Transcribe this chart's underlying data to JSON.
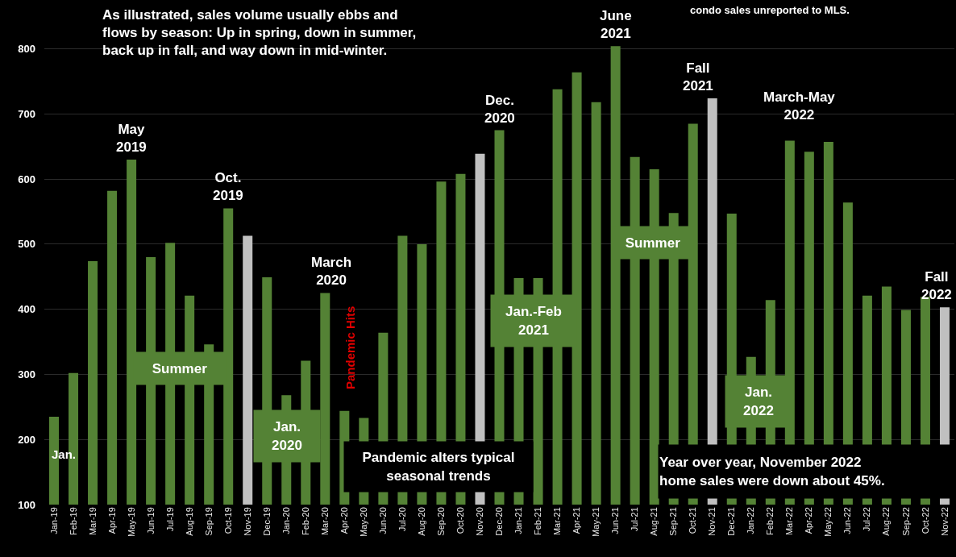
{
  "chart_data": {
    "type": "bar",
    "categories": [
      "Jan-19",
      "Feb-19",
      "Mar-19",
      "Apr-19",
      "May-19",
      "Jun-19",
      "Jul-19",
      "Aug-19",
      "Sep-19",
      "Oct-19",
      "Nov-19",
      "Dec-19",
      "Jan-20",
      "Feb-20",
      "Mar-20",
      "Apr-20",
      "May-20",
      "Jun-20",
      "Jul-20",
      "Aug-20",
      "Sep-20",
      "Oct-20",
      "Nov-20",
      "Dec-20",
      "Jan-21",
      "Feb-21",
      "Mar-21",
      "Apr-21",
      "May-21",
      "Jun-21",
      "Jul-21",
      "Aug-21",
      "Sep-21",
      "Oct-21",
      "Nov-21",
      "Dec-21",
      "Jan-22",
      "Feb-22",
      "Mar-22",
      "Apr-22",
      "May-22",
      "Jun-22",
      "Jul-22",
      "Aug-22",
      "Sep-22",
      "Oct-22",
      "Nov-22"
    ],
    "values": [
      235,
      302,
      474,
      582,
      630,
      480,
      502,
      421,
      346,
      555,
      513,
      449,
      268,
      321,
      425,
      244,
      233,
      364,
      513,
      500,
      596,
      608,
      639,
      675,
      448,
      448,
      738,
      764,
      718,
      804,
      634,
      615,
      548,
      685,
      724,
      547,
      327,
      414,
      659,
      642,
      657,
      564,
      421,
      435,
      399,
      419,
      403
    ],
    "colors": [
      "#548235",
      "#548235",
      "#548235",
      "#548235",
      "#548235",
      "#548235",
      "#548235",
      "#548235",
      "#548235",
      "#548235",
      "#c0c0c0",
      "#548235",
      "#548235",
      "#548235",
      "#548235",
      "#548235",
      "#548235",
      "#548235",
      "#548235",
      "#548235",
      "#548235",
      "#548235",
      "#c0c0c0",
      "#548235",
      "#548235",
      "#548235",
      "#548235",
      "#548235",
      "#548235",
      "#548235",
      "#548235",
      "#548235",
      "#548235",
      "#548235",
      "#c0c0c0",
      "#548235",
      "#548235",
      "#548235",
      "#548235",
      "#548235",
      "#548235",
      "#548235",
      "#548235",
      "#548235",
      "#548235",
      "#548235",
      "#c0c0c0"
    ],
    "ylim": [
      100,
      875
    ],
    "yticks": [
      100,
      200,
      300,
      400,
      500,
      600,
      700,
      800
    ],
    "grid": "y",
    "annotations": [
      "As illustrated, sales volume usually ebbs and flows by season: Up in spring, down in summer, back up in fall, and way down in mid-winter.",
      "condo sales unreported to MLS.",
      "Jan.",
      {
        "text": "May 2019",
        "x": "May-19",
        "y": 630
      },
      "Summer",
      {
        "text": "Oct. 2019",
        "x": "Oct-19",
        "y": 555
      },
      "Jan. 2020",
      {
        "text": "March 2020",
        "x": "Mar-20",
        "y": 425
      },
      "Pandemic Hits",
      "Pandemic alters typical seasonal trends",
      {
        "text": "Dec. 2020",
        "x": "Dec-20",
        "y": 675
      },
      "Jan.-Feb 2021",
      {
        "text": "June 2021",
        "x": "Jun-21",
        "y": 804
      },
      "Summer",
      {
        "text": "Fall 2021",
        "x": "Nov-21",
        "y": 724
      },
      "Jan. 2022",
      {
        "text": "March-May 2022",
        "x": "Apr-22",
        "y": 642
      },
      {
        "text": "Fall 2022",
        "x": "Nov-22",
        "y": 403
      },
      "Year over year, November 2022 home sales were down about 45%."
    ]
  }
}
